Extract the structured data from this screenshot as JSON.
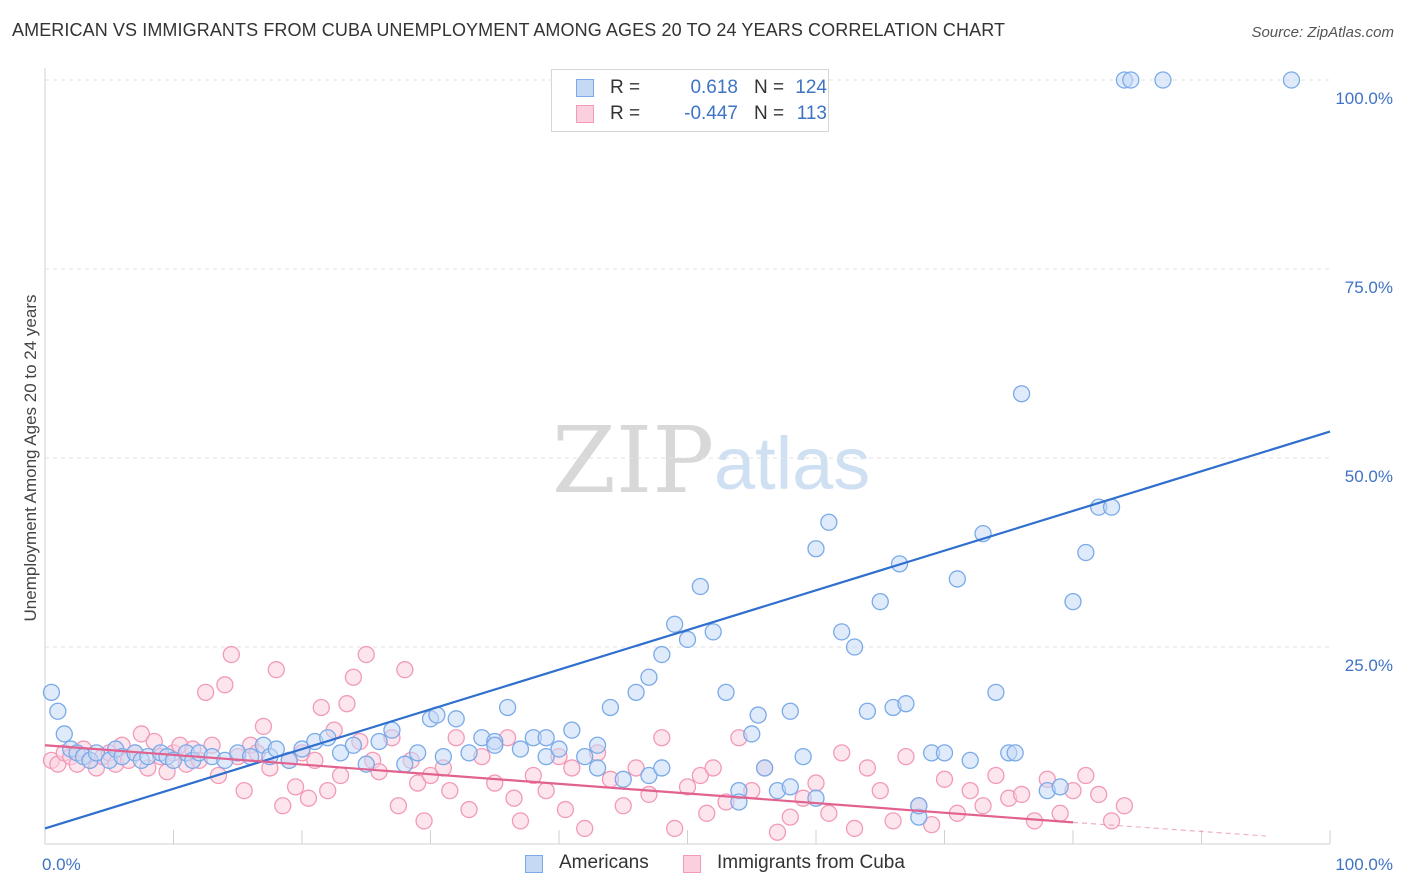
{
  "header": {
    "title": "AMERICAN VS IMMIGRANTS FROM CUBA UNEMPLOYMENT AMONG AGES 20 TO 24 YEARS CORRELATION CHART",
    "source": "Source: ZipAtlas.com"
  },
  "watermark": {
    "zip": "ZIP",
    "atlas": "atlas"
  },
  "legend": {
    "rows": [
      {
        "r_label": "R =",
        "r_value": "0.618",
        "n_label": "N =",
        "n_value": "124"
      },
      {
        "r_label": "R =",
        "r_value": "-0.447",
        "n_label": "N =",
        "n_value": "113"
      }
    ]
  },
  "bottom_legend": {
    "americans": "Americans",
    "cuba": "Immigrants from Cuba"
  },
  "chart_data": {
    "type": "scatter",
    "title": "AMERICAN VS IMMIGRANTS FROM CUBA UNEMPLOYMENT AMONG AGES 20 TO 24 YEARS CORRELATION CHART",
    "xlabel": "",
    "ylabel": "Unemployment Among Ages 20 to 24 years",
    "xlim": [
      0,
      100
    ],
    "ylim": [
      0,
      100
    ],
    "x_tick_labels": [
      "0.0%",
      "100.0%"
    ],
    "y_tick_labels": [
      "25.0%",
      "50.0%",
      "75.0%",
      "100.0%"
    ],
    "y_ticks": [
      25,
      50,
      75,
      100
    ],
    "grid": true,
    "colors": {
      "americans": "#7aaae8",
      "americans_fill": "#c5d9f5",
      "americans_line": "#2f6fcd",
      "cuba": "#f29ab8",
      "cuba_fill": "#fad0de",
      "cuba_line": "#e2628f"
    },
    "series": [
      {
        "name": "Americans",
        "trend": {
          "x": [
            0,
            100
          ],
          "y": [
            1.0,
            53.5
          ]
        },
        "points": [
          [
            0.5,
            19
          ],
          [
            1,
            16.5
          ],
          [
            1.5,
            13.5
          ],
          [
            2,
            11.5
          ],
          [
            2.5,
            11
          ],
          [
            3,
            10.5
          ],
          [
            3.5,
            10
          ],
          [
            4,
            11
          ],
          [
            5,
            10
          ],
          [
            5.5,
            11.5
          ],
          [
            6,
            10.5
          ],
          [
            7,
            11
          ],
          [
            7.5,
            10
          ],
          [
            8,
            10.5
          ],
          [
            9,
            11
          ],
          [
            9.5,
            10.5
          ],
          [
            10,
            10
          ],
          [
            11,
            11
          ],
          [
            11.5,
            10
          ],
          [
            12,
            11
          ],
          [
            13,
            10.5
          ],
          [
            14,
            10
          ],
          [
            15,
            11
          ],
          [
            16,
            10.5
          ],
          [
            17,
            12
          ],
          [
            17.5,
            10.5
          ],
          [
            18,
            11.5
          ],
          [
            19,
            10
          ],
          [
            20,
            11.5
          ],
          [
            21,
            12.5
          ],
          [
            22,
            13
          ],
          [
            23,
            11
          ],
          [
            24,
            12
          ],
          [
            25,
            9.5
          ],
          [
            26,
            12.5
          ],
          [
            27,
            14
          ],
          [
            28,
            9.5
          ],
          [
            29,
            11
          ],
          [
            30,
            15.5
          ],
          [
            30.5,
            16
          ],
          [
            31,
            10.5
          ],
          [
            32,
            15.5
          ],
          [
            33,
            11
          ],
          [
            34,
            13
          ],
          [
            35,
            12.5
          ],
          [
            36,
            17
          ],
          [
            37,
            11.5
          ],
          [
            38,
            13
          ],
          [
            39,
            10.5
          ],
          [
            40,
            11.5
          ],
          [
            41,
            14
          ],
          [
            42,
            10.5
          ],
          [
            43,
            9
          ],
          [
            44,
            17
          ],
          [
            45,
            7.5
          ],
          [
            46,
            19
          ],
          [
            47,
            21
          ],
          [
            48,
            24
          ],
          [
            49,
            28
          ],
          [
            50,
            26
          ],
          [
            51,
            33
          ],
          [
            52,
            27
          ],
          [
            53,
            19
          ],
          [
            54,
            6
          ],
          [
            55,
            13.5
          ],
          [
            55.5,
            16
          ],
          [
            56,
            9
          ],
          [
            57,
            6
          ],
          [
            58,
            16.5
          ],
          [
            59,
            10.5
          ],
          [
            60,
            38
          ],
          [
            61,
            41.5
          ],
          [
            62,
            27
          ],
          [
            63,
            25
          ],
          [
            64,
            16.5
          ],
          [
            65,
            31
          ],
          [
            66,
            17
          ],
          [
            66.5,
            36
          ],
          [
            67,
            17.5
          ],
          [
            68,
            2.5
          ],
          [
            69,
            11
          ],
          [
            70,
            11
          ],
          [
            71,
            34
          ],
          [
            72,
            10
          ],
          [
            73,
            40
          ],
          [
            74,
            19
          ],
          [
            75,
            11
          ],
          [
            75.5,
            11
          ],
          [
            76,
            58.5
          ],
          [
            78,
            6
          ],
          [
            79,
            6.5
          ],
          [
            80,
            31
          ],
          [
            81,
            37.5
          ],
          [
            82,
            43.5
          ],
          [
            83,
            43.5
          ],
          [
            84,
            100
          ],
          [
            84.5,
            100
          ],
          [
            87,
            100
          ],
          [
            97,
            100
          ],
          [
            35,
            12
          ],
          [
            39,
            13
          ],
          [
            43,
            12
          ],
          [
            47,
            8
          ],
          [
            48,
            9
          ],
          [
            54,
            4.5
          ],
          [
            58,
            6.5
          ],
          [
            60,
            5
          ],
          [
            68,
            4
          ]
        ]
      },
      {
        "name": "Immigrants from Cuba",
        "trend": {
          "x": [
            0,
            80
          ],
          "y": [
            12.0,
            1.8
          ]
        },
        "trend_dashed": {
          "x": [
            80,
            95
          ],
          "y": [
            1.8,
            0.0
          ]
        },
        "points": [
          [
            0.5,
            10
          ],
          [
            1,
            9.5
          ],
          [
            1.5,
            11
          ],
          [
            2,
            10.5
          ],
          [
            2.5,
            9.5
          ],
          [
            3,
            11.5
          ],
          [
            3.5,
            10
          ],
          [
            4,
            9
          ],
          [
            4.5,
            10.5
          ],
          [
            5,
            11
          ],
          [
            5.5,
            9.5
          ],
          [
            6,
            12
          ],
          [
            6.5,
            10
          ],
          [
            7,
            11
          ],
          [
            7.5,
            13.5
          ],
          [
            8,
            9
          ],
          [
            8.5,
            12.5
          ],
          [
            9,
            10.5
          ],
          [
            9.5,
            8.5
          ],
          [
            10,
            11
          ],
          [
            10.5,
            12
          ],
          [
            11,
            9.5
          ],
          [
            11.5,
            11.5
          ],
          [
            12,
            10
          ],
          [
            12.5,
            19
          ],
          [
            13,
            12
          ],
          [
            13.5,
            8
          ],
          [
            14,
            20
          ],
          [
            14.5,
            24
          ],
          [
            15,
            10.5
          ],
          [
            15.5,
            6
          ],
          [
            16,
            12
          ],
          [
            16.5,
            11
          ],
          [
            17,
            14.5
          ],
          [
            17.5,
            9
          ],
          [
            18,
            22
          ],
          [
            18.5,
            4
          ],
          [
            19,
            10
          ],
          [
            19.5,
            6.5
          ],
          [
            20,
            11
          ],
          [
            20.5,
            5
          ],
          [
            21,
            10
          ],
          [
            21.5,
            17
          ],
          [
            22,
            6
          ],
          [
            22.5,
            14
          ],
          [
            23,
            8
          ],
          [
            23.5,
            17.5
          ],
          [
            24,
            21
          ],
          [
            24.5,
            12.5
          ],
          [
            25,
            24
          ],
          [
            25.5,
            10
          ],
          [
            26,
            8.5
          ],
          [
            27,
            13
          ],
          [
            27.5,
            4
          ],
          [
            28,
            22
          ],
          [
            28.5,
            10
          ],
          [
            29,
            7
          ],
          [
            29.5,
            2
          ],
          [
            30,
            8
          ],
          [
            31,
            9
          ],
          [
            31.5,
            6
          ],
          [
            32,
            13
          ],
          [
            33,
            3.5
          ],
          [
            34,
            10.5
          ],
          [
            35,
            7
          ],
          [
            36,
            13
          ],
          [
            36.5,
            5
          ],
          [
            37,
            2
          ],
          [
            38,
            8
          ],
          [
            39,
            6
          ],
          [
            40,
            10.5
          ],
          [
            40.5,
            3.5
          ],
          [
            41,
            9
          ],
          [
            42,
            1
          ],
          [
            43,
            11
          ],
          [
            44,
            7.5
          ],
          [
            45,
            4
          ],
          [
            46,
            9
          ],
          [
            47,
            5.5
          ],
          [
            48,
            13
          ],
          [
            49,
            1
          ],
          [
            50,
            6.5
          ],
          [
            51,
            8
          ],
          [
            51.5,
            3
          ],
          [
            52,
            9
          ],
          [
            53,
            4.5
          ],
          [
            54,
            13
          ],
          [
            55,
            6
          ],
          [
            56,
            9
          ],
          [
            57,
            0.5
          ],
          [
            58,
            2.5
          ],
          [
            59,
            5
          ],
          [
            60,
            7
          ],
          [
            61,
            3
          ],
          [
            62,
            11
          ],
          [
            63,
            1
          ],
          [
            64,
            9
          ],
          [
            65,
            6
          ],
          [
            66,
            2
          ],
          [
            67,
            10.5
          ],
          [
            68,
            4
          ],
          [
            69,
            1.5
          ],
          [
            70,
            7.5
          ],
          [
            71,
            3
          ],
          [
            72,
            6
          ],
          [
            73,
            4
          ],
          [
            74,
            8
          ],
          [
            75,
            5
          ],
          [
            76,
            5.5
          ],
          [
            77,
            2
          ],
          [
            78,
            7.5
          ],
          [
            79,
            3
          ],
          [
            80,
            6
          ],
          [
            81,
            8
          ],
          [
            82,
            5.5
          ],
          [
            83,
            2
          ],
          [
            84,
            4
          ]
        ]
      }
    ]
  }
}
